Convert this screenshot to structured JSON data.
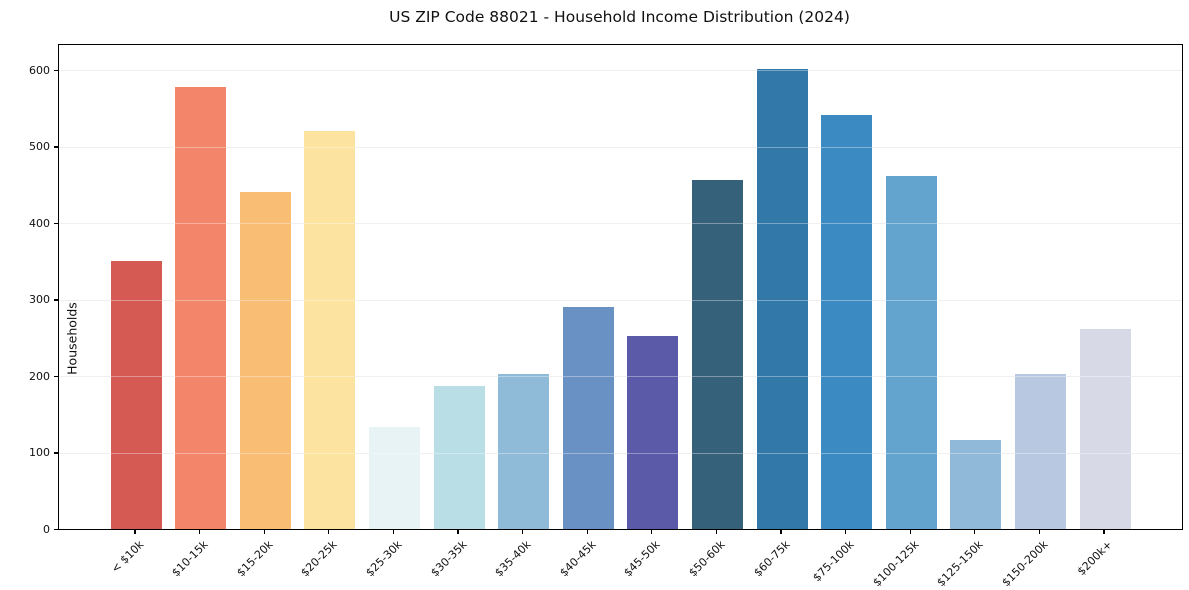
{
  "chart_data": {
    "type": "bar",
    "title": "US ZIP Code 88021 - Household Income Distribution (2024)",
    "xlabel": "",
    "ylabel": "Households",
    "categories": [
      "< $10k",
      "$10-15k",
      "$15-20k",
      "$20-25k",
      "$25-30k",
      "$30-35k",
      "$35-40k",
      "$40-45k",
      "$45-50k",
      "$50-60k",
      "$60-75k",
      "$75-100k",
      "$100-125k",
      "$125-150k",
      "$150-200k",
      "$200k+"
    ],
    "values": [
      350,
      578,
      441,
      520,
      133,
      187,
      203,
      291,
      252,
      456,
      601,
      541,
      462,
      117,
      203,
      261
    ],
    "bar_colors": [
      "#d45a53",
      "#f3866a",
      "#fabd74",
      "#fce3a0",
      "#e7f3f4",
      "#badee6",
      "#8fbad8",
      "#6a91c4",
      "#5a5aa8",
      "#36617b",
      "#3279aa",
      "#3b8ac2",
      "#62a4cd",
      "#90b8d9",
      "#b7c8e0",
      "#d7d9e6"
    ],
    "ylim": [
      0,
      633
    ],
    "yticks": [
      0,
      100,
      200,
      300,
      400,
      500,
      600
    ],
    "grid": true,
    "grid_color": "#e6e6e6",
    "axis_color": "#000000",
    "legend": false
  }
}
